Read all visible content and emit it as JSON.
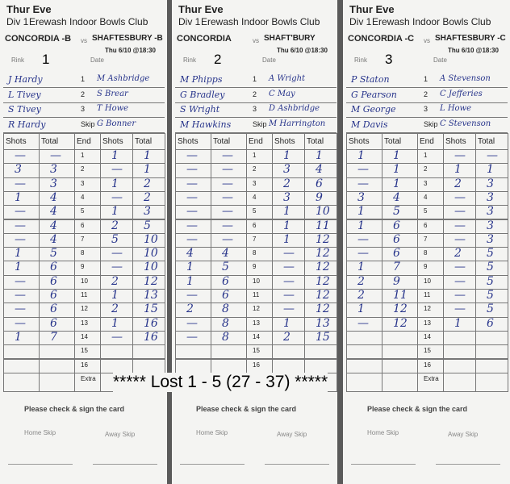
{
  "template": {
    "title": "Thur Eve",
    "division": "Div 1",
    "club": "Erewash Indoor Bowls Club",
    "vs": "vs",
    "rink_label": "Rink",
    "date_label": "Date",
    "skip_label": "Skip",
    "player_numbers": [
      "1",
      "2",
      "3"
    ],
    "columns": [
      "Shots",
      "Total",
      "End",
      "Shots",
      "Total"
    ],
    "ends": [
      "1",
      "2",
      "3",
      "4",
      "5",
      "6",
      "7",
      "8",
      "9",
      "10",
      "11",
      "12",
      "13",
      "14",
      "15",
      "16",
      "Extra"
    ],
    "footer": "Please check & sign the card",
    "home_skip": "Home Skip",
    "away_skip": "Away Skip"
  },
  "cards": [
    {
      "rink": "1",
      "home": "CONCORDIA -B",
      "away": "SHAFTESBURY -B",
      "date": "Thu 6/10 @18:30",
      "players": [
        [
          "J Hardy",
          "M Ashbridge"
        ],
        [
          "L Tivey",
          "S Brear"
        ],
        [
          "S Tivey",
          "T Howe"
        ],
        [
          "R Hardy",
          "G Bonner"
        ]
      ],
      "scores": [
        [
          "—",
          "—",
          "1",
          "1"
        ],
        [
          "3",
          "3",
          "—",
          "1"
        ],
        [
          "—",
          "3",
          "1",
          "2"
        ],
        [
          "1",
          "4",
          "—",
          "2"
        ],
        [
          "—",
          "4",
          "1",
          "3"
        ],
        [
          "—",
          "4",
          "2",
          "5"
        ],
        [
          "—",
          "4",
          "5",
          "10"
        ],
        [
          "1",
          "5",
          "—",
          "10"
        ],
        [
          "1",
          "6",
          "—",
          "10"
        ],
        [
          "—",
          "6",
          "2",
          "12"
        ],
        [
          "—",
          "6",
          "1",
          "13"
        ],
        [
          "—",
          "6",
          "2",
          "15"
        ],
        [
          "—",
          "6",
          "1",
          "16"
        ],
        [
          "1",
          "7",
          "—",
          "16"
        ]
      ]
    },
    {
      "rink": "2",
      "home": "CONCORDIA",
      "away": "SHAFT'BURY",
      "date": "Thu 6/10 @18:30",
      "players": [
        [
          "M Phipps",
          "A Wright"
        ],
        [
          "G Bradley",
          "C May"
        ],
        [
          "S Wright",
          "D Ashbridge"
        ],
        [
          "M Hawkins",
          "M Harrington"
        ]
      ],
      "scores": [
        [
          "—",
          "—",
          "1",
          "1"
        ],
        [
          "—",
          "—",
          "3",
          "4"
        ],
        [
          "—",
          "—",
          "2",
          "6"
        ],
        [
          "—",
          "—",
          "3",
          "9"
        ],
        [
          "—",
          "—",
          "1",
          "10"
        ],
        [
          "—",
          "—",
          "1",
          "11"
        ],
        [
          "—",
          "—",
          "1",
          "12"
        ],
        [
          "4",
          "4",
          "—",
          "12"
        ],
        [
          "1",
          "5",
          "—",
          "12"
        ],
        [
          "1",
          "6",
          "—",
          "12"
        ],
        [
          "—",
          "6",
          "—",
          "12"
        ],
        [
          "2",
          "8",
          "—",
          "12"
        ],
        [
          "—",
          "8",
          "1",
          "13"
        ],
        [
          "—",
          "8",
          "2",
          "15"
        ]
      ]
    },
    {
      "rink": "3",
      "home": "CONCORDIA -C",
      "away": "SHAFTESBURY -C",
      "date": "Thu 6/10 @18:30",
      "players": [
        [
          "P Staton",
          "A Stevenson"
        ],
        [
          "G Pearson",
          "C Jefferies"
        ],
        [
          "M George",
          "L Howe"
        ],
        [
          "M Davis",
          "C Stevenson"
        ]
      ],
      "scores": [
        [
          "1",
          "1",
          "—",
          "—"
        ],
        [
          "—",
          "1",
          "1",
          "1"
        ],
        [
          "—",
          "1",
          "2",
          "3"
        ],
        [
          "3",
          "4",
          "—",
          "3"
        ],
        [
          "1",
          "5",
          "—",
          "3"
        ],
        [
          "1",
          "6",
          "—",
          "3"
        ],
        [
          "—",
          "6",
          "—",
          "3"
        ],
        [
          "—",
          "6",
          "2",
          "5"
        ],
        [
          "1",
          "7",
          "—",
          "5"
        ],
        [
          "2",
          "9",
          "—",
          "5"
        ],
        [
          "2",
          "11",
          "—",
          "5"
        ],
        [
          "1",
          "12",
          "—",
          "5"
        ],
        [
          "—",
          "12",
          "1",
          "6"
        ]
      ]
    }
  ],
  "result": "***** Lost 1 - 5 (27 - 37) *****"
}
